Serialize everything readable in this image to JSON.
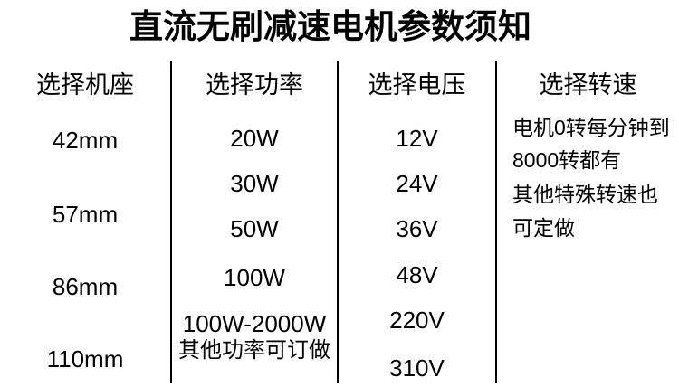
{
  "page": {
    "title": "直流无刷减速电机参数须知",
    "background_color": "#ffffff",
    "text_color": "#000000",
    "divider_color": "#000000"
  },
  "columns": [
    {
      "header": "选择机座",
      "items": [
        "42mm",
        "57mm",
        "86mm",
        "110mm"
      ]
    },
    {
      "header": "选择功率",
      "items": [
        "20W",
        "30W",
        "50W",
        "100W",
        "100W-2000W",
        "其他功率可订做"
      ]
    },
    {
      "header": "选择电压",
      "items": [
        "12V",
        "24V",
        "36V",
        "48V",
        "220V",
        "310V"
      ]
    },
    {
      "header": "选择转速",
      "items": [
        "电机0转每分钟到",
        "8000转都有",
        "其他特殊转速也",
        "可定做"
      ]
    }
  ]
}
